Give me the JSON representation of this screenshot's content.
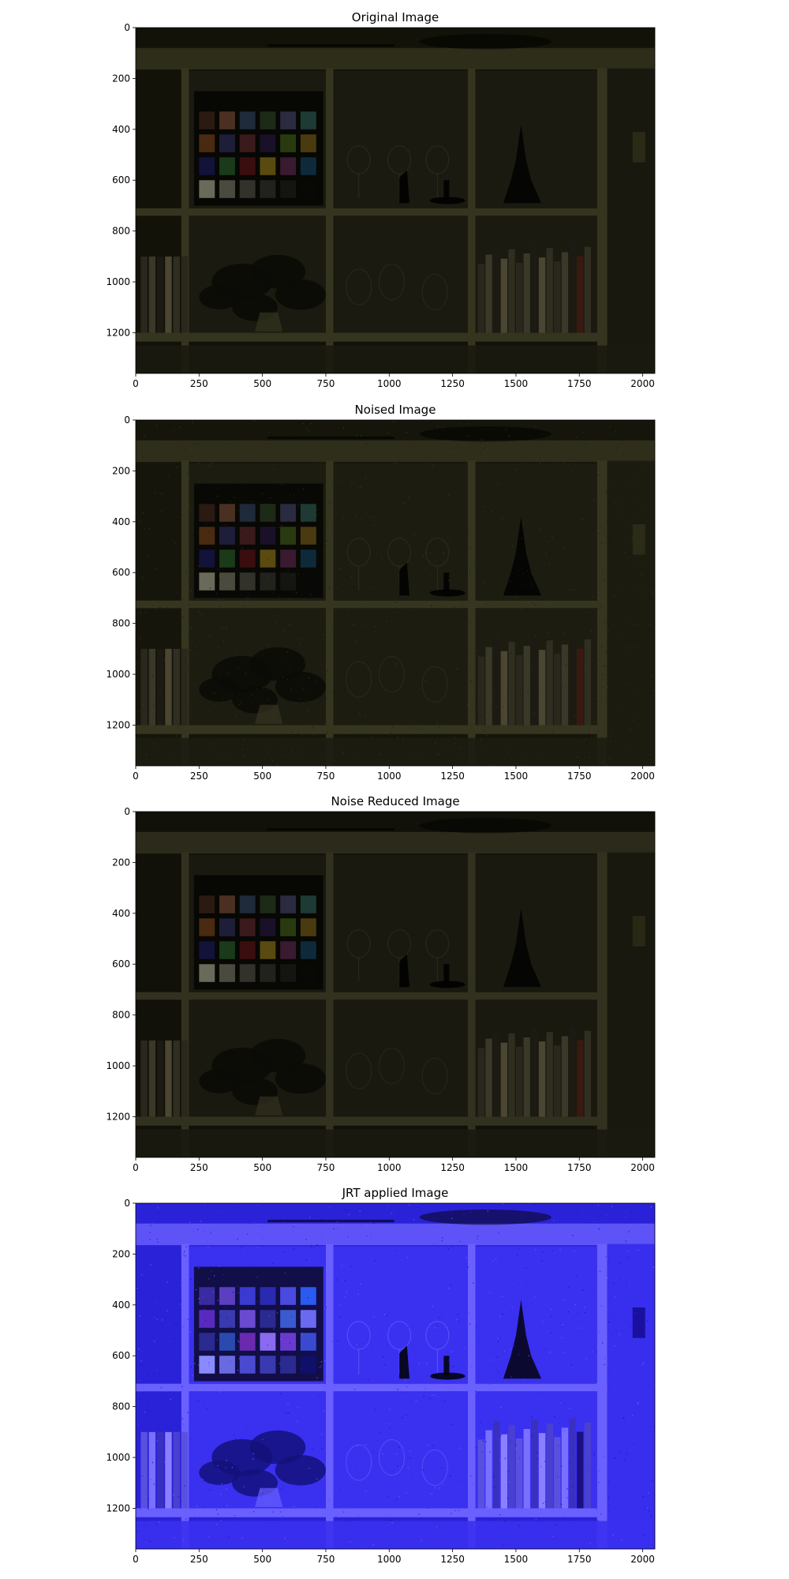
{
  "figure": {
    "panels": [
      {
        "title": "Original Image",
        "scene": "dark",
        "colors": {
          "base": "#121208",
          "shelf": "#35341f",
          "cube": "#1a1a10",
          "accent": "#2a2a16"
        },
        "noise": false
      },
      {
        "title": "Noised Image",
        "scene": "noisy",
        "colors": {
          "base": "#15150b",
          "shelf": "#36351f",
          "cube": "#1c1c11",
          "accent": "#2b2b17"
        },
        "noise": true
      },
      {
        "title": "Noise Reduced Image",
        "scene": "denoised",
        "colors": {
          "base": "#111109",
          "shelf": "#323120",
          "cube": "#19190f",
          "accent": "#282814"
        },
        "noise": false
      },
      {
        "title": "JRT applied Image",
        "scene": "blue",
        "colors": {
          "base": "#2a22d8",
          "shelf": "#6a60ff",
          "cube": "#3a30f0",
          "accent": "#1a10a0"
        },
        "noise": true
      }
    ],
    "x_ticks": [
      "0",
      "250",
      "500",
      "750",
      "1000",
      "1250",
      "1500",
      "1750",
      "2000"
    ],
    "y_ticks": [
      "0",
      "200",
      "400",
      "600",
      "800",
      "1000",
      "1200"
    ]
  }
}
